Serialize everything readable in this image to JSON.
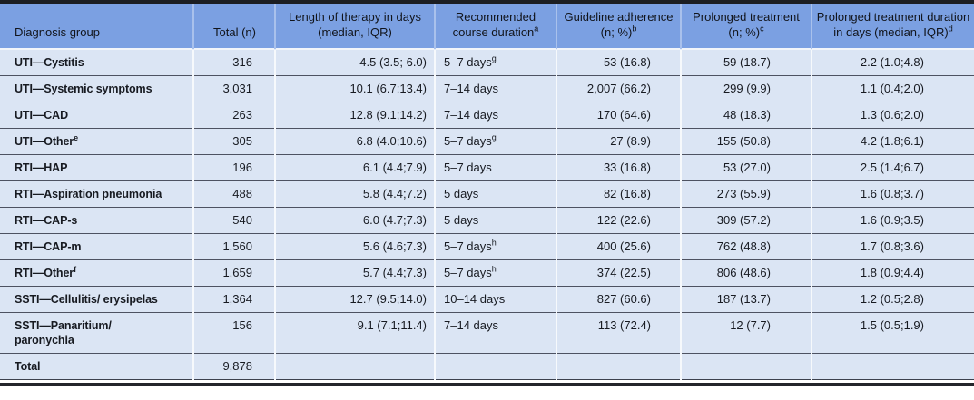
{
  "colors": {
    "header_bg": "#7ba0e2",
    "row_bg": "#dbe5f4"
  },
  "table": {
    "columns": [
      {
        "key": "diagnosis-group",
        "label": "Diagnosis group",
        "sup": ""
      },
      {
        "key": "total-n",
        "label": "Total (n)",
        "sup": ""
      },
      {
        "key": "length-of-therapy",
        "label": "Length of therapy in days (median, IQR)",
        "sup": ""
      },
      {
        "key": "recommended-course-duration",
        "label": "Recommended course duration",
        "sup": "a"
      },
      {
        "key": "guideline-adherence",
        "label": "Guideline adherence (n; %)",
        "sup": "b"
      },
      {
        "key": "prolonged-treatment",
        "label": "Prolonged treatment (n; %)",
        "sup": "c"
      },
      {
        "key": "prolonged-treatment-duration",
        "label": "Prolonged treatment duration in days (median, IQR)",
        "sup": "d"
      }
    ],
    "rows": [
      {
        "cells": [
          "UTI—Cystitis",
          "316",
          "4.5 (3.5; 6.0)",
          {
            "text": "5–7 days",
            "sup": "g"
          },
          "53 (16.8)",
          "59 (18.7)",
          "2.2 (1.0;4.8)"
        ]
      },
      {
        "cells": [
          "UTI—Systemic symptoms",
          "3,031",
          "10.1 (6.7;13.4)",
          "7–14 days",
          "2,007 (66.2)",
          "299 (9.9)",
          "1.1 (0.4;2.0)"
        ]
      },
      {
        "cells": [
          "UTI—CAD",
          "263",
          "12.8 (9.1;14.2)",
          "7–14 days",
          "170 (64.6)",
          "48 (18.3)",
          "1.3 (0.6;2.0)"
        ]
      },
      {
        "cells": [
          {
            "text": "UTI—Other",
            "sup": "e"
          },
          "305",
          "6.8 (4.0;10.6)",
          {
            "text": "5–7 days",
            "sup": "g"
          },
          "27 (8.9)",
          "155 (50.8)",
          "4.2 (1.8;6.1)"
        ]
      },
      {
        "cells": [
          "RTI—HAP",
          "196",
          "6.1 (4.4;7.9)",
          "5–7 days",
          "33 (16.8)",
          "53 (27.0)",
          "2.5 (1.4;6.7)"
        ]
      },
      {
        "cells": [
          "RTI—Aspiration pneumonia",
          "488",
          "5.8 (4.4;7.2)",
          "5 days",
          "82 (16.8)",
          "273 (55.9)",
          "1.6 (0.8;3.7)"
        ]
      },
      {
        "cells": [
          "RTI—CAP-s",
          "540",
          "6.0 (4.7;7.3)",
          "5 days",
          "122 (22.6)",
          "309 (57.2)",
          "1.6 (0.9;3.5)"
        ]
      },
      {
        "cells": [
          "RTI—CAP-m",
          "1,560",
          "5.6 (4.6;7.3)",
          {
            "text": "5–7 days",
            "sup": "h"
          },
          "400 (25.6)",
          "762 (48.8)",
          "1.7 (0.8;3.6)"
        ]
      },
      {
        "cells": [
          {
            "text": "RTI—Other",
            "sup": "f"
          },
          "1,659",
          "5.7 (4.4;7.3)",
          {
            "text": "5–7 days",
            "sup": "h"
          },
          "374 (22.5)",
          "806 (48.6)",
          "1.8 (0.9;4.4)"
        ]
      },
      {
        "cells": [
          "SSTI—Cellulitis/ erysipelas",
          "1,364",
          "12.7 (9.5;14.0)",
          "10–14 days",
          "827 (60.6)",
          "187 (13.7)",
          "1.2 (0.5;2.8)"
        ]
      },
      {
        "cells": [
          "SSTI—Panaritium/\nparonychia",
          "156",
          "9.1 (7.1;11.4)",
          "7–14 days",
          "113 (72.4)",
          "12 (7.7)",
          "1.5 (0.5;1.9)"
        ]
      },
      {
        "total": true,
        "cells": [
          "Total",
          "9,878",
          "",
          "",
          "",
          "",
          ""
        ]
      }
    ]
  }
}
